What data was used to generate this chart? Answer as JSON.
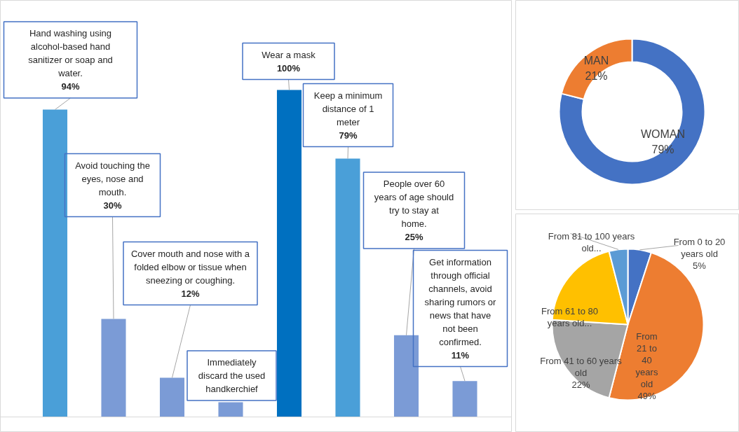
{
  "chart_data": [
    {
      "type": "bar",
      "categories": [
        "Hand washing using alcohol-based hand sanitizer or soap and water.",
        "Avoid touching the eyes, nose and mouth.",
        "Cover mouth and nose with a folded elbow or tissue when sneezing or coughing.",
        "Immediately discard the used handkerchief",
        "Wear a mask",
        "Keep a minimum distance of 1 meter",
        "People over 60 years of age should try to stay at home.",
        "Get information through official channels, avoid sharing rumors or news that have not been confirmed."
      ],
      "values": [
        94,
        30,
        12,
        4.5,
        100,
        79,
        25,
        11
      ],
      "value_labels": [
        "94%",
        "30%",
        "12%",
        null,
        "100%",
        "79%",
        "25%",
        "11%"
      ],
      "colors": [
        "#4a9fd8",
        "#7b9bd6",
        "#7b9bd6",
        "#7b9bd6",
        "#0070c0",
        "#4a9fd8",
        "#7b9bd6",
        "#7b9bd6"
      ]
    },
    {
      "type": "donut",
      "categories": [
        "WOMAN",
        "MAN"
      ],
      "values": [
        79,
        21
      ],
      "value_labels": [
        "79%",
        "21%"
      ],
      "colors": [
        "#4472c4",
        "#ed7d31"
      ]
    },
    {
      "type": "pie",
      "categories": [
        "From 0 to 20 years old",
        "From 21 to 40 years old",
        "From 41 to 60 years old",
        "From 61 to 80 years old...",
        "From 81 to 100 years old..."
      ],
      "values": [
        5,
        49,
        22,
        20,
        4
      ],
      "value_labels": [
        "5%",
        "49%",
        "22%",
        null,
        null
      ],
      "colors": [
        "#4472c4",
        "#ed7d31",
        "#a5a5a5",
        "#ffc000",
        "#5b9bd5"
      ]
    }
  ]
}
